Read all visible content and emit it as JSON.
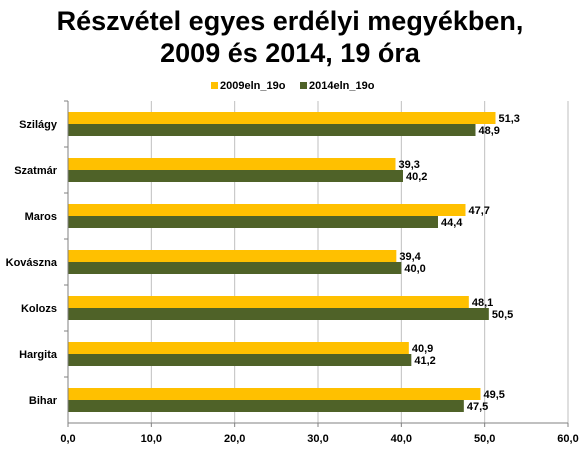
{
  "chart_data": {
    "type": "bar",
    "orientation": "horizontal",
    "title_lines": [
      "Részvétel egyes erdélyi megyékben,",
      "2009 és 2014, 19 óra"
    ],
    "categories": [
      "Szilágy",
      "Szatmár",
      "Maros",
      "Kovászna",
      "Kolozs",
      "Hargita",
      "Bihar"
    ],
    "series": [
      {
        "name": "2009eln_19o",
        "color": "#FFC000",
        "values": [
          51.3,
          39.3,
          47.7,
          39.4,
          48.1,
          40.9,
          49.5
        ],
        "labels": [
          "51,3",
          "39,3",
          "47,7",
          "39,4",
          "48,1",
          "40,9",
          "49,5"
        ]
      },
      {
        "name": "2014eln_19o",
        "color": "#4F6228",
        "values": [
          48.9,
          40.2,
          44.4,
          40.0,
          50.5,
          41.2,
          47.5
        ],
        "labels": [
          "48,9",
          "40,2",
          "44,4",
          "40,0",
          "50,5",
          "41,2",
          "47,5"
        ]
      }
    ],
    "xlim": [
      0,
      60
    ],
    "ticks": [
      0,
      10,
      20,
      30,
      40,
      50,
      60
    ],
    "tick_labels": [
      "0,0",
      "10,0",
      "20,0",
      "30,0",
      "40,0",
      "50,0",
      "60,0"
    ],
    "grid": true,
    "legend_position": "top"
  }
}
